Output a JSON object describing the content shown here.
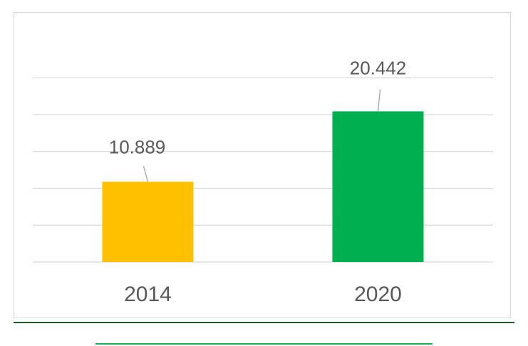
{
  "chart_data": {
    "type": "bar",
    "categories": [
      "2014",
      "2020"
    ],
    "values": [
      10.889,
      20.442
    ],
    "value_labels": [
      "10.889",
      "20.442"
    ],
    "colors": [
      "#FFC000",
      "#00B050"
    ],
    "ylim": [
      0,
      25
    ],
    "gridlines": true,
    "legend": "none"
  },
  "colors": {
    "gridline": "#d9d9d9",
    "label_text": "#595959",
    "bottom_rule": "#1e5b2b",
    "bottom_accent": "#16b055"
  }
}
